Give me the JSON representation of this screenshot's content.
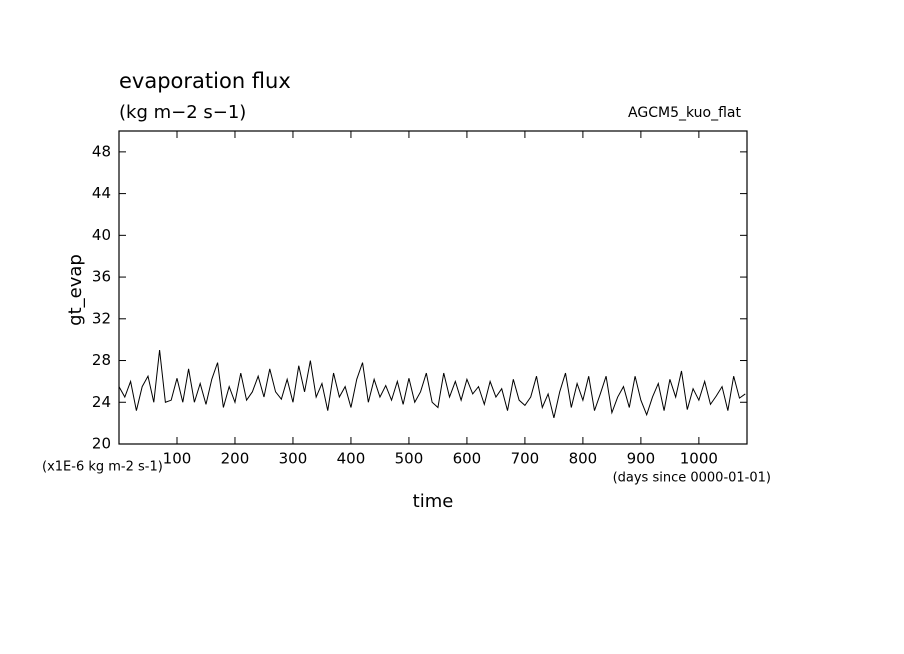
{
  "chart_data": {
    "type": "line",
    "title": "evaporation flux",
    "subtitle": "(kg m−2 s−1)",
    "annotation": "AGCM5_kuo_flat",
    "y_label": "gt_evap",
    "y_unit": "(x1E-6 kg m-2 s-1)",
    "x_label": "time",
    "x_unit": "(days since 0000-01-01)",
    "xlim": [
      0,
      1083
    ],
    "ylim": [
      20,
      50
    ],
    "xticks": [
      100,
      200,
      300,
      400,
      500,
      600,
      700,
      800,
      900,
      1000
    ],
    "yticks": [
      20,
      24,
      28,
      32,
      36,
      40,
      44,
      48
    ],
    "grid": false,
    "x": [
      0,
      10,
      20,
      30,
      40,
      50,
      60,
      70,
      80,
      90,
      100,
      110,
      120,
      130,
      140,
      150,
      160,
      170,
      180,
      190,
      200,
      210,
      220,
      230,
      240,
      250,
      260,
      270,
      280,
      290,
      300,
      310,
      320,
      330,
      340,
      350,
      360,
      370,
      380,
      390,
      400,
      410,
      420,
      430,
      440,
      450,
      460,
      470,
      480,
      490,
      500,
      510,
      520,
      530,
      540,
      550,
      560,
      570,
      580,
      590,
      600,
      610,
      620,
      630,
      640,
      650,
      660,
      670,
      680,
      690,
      700,
      710,
      720,
      730,
      740,
      750,
      760,
      770,
      780,
      790,
      800,
      810,
      820,
      830,
      840,
      850,
      860,
      870,
      880,
      890,
      900,
      910,
      920,
      930,
      940,
      950,
      960,
      970,
      980,
      990,
      1000,
      1010,
      1020,
      1030,
      1040,
      1050,
      1060,
      1070,
      1080
    ],
    "series": [
      {
        "name": "gt_evap",
        "color": "#000000",
        "values": [
          25.5,
          24.5,
          26,
          23.2,
          25.5,
          26.5,
          24,
          29,
          24,
          24.2,
          26.3,
          24,
          27.2,
          24,
          25.8,
          23.8,
          26.2,
          27.8,
          23.5,
          25.5,
          24,
          26.8,
          24.2,
          25,
          26.5,
          24.5,
          27.2,
          25,
          24.3,
          26.2,
          24,
          27.5,
          25,
          28,
          24.5,
          25.8,
          23.2,
          26.8,
          24.5,
          25.5,
          23.5,
          26.2,
          27.8,
          24,
          26.2,
          24.5,
          25.6,
          24.2,
          26,
          23.8,
          26.3,
          24,
          25,
          26.8,
          24,
          23.5,
          26.8,
          24.5,
          26,
          24.2,
          26.2,
          24.8,
          25.5,
          23.8,
          26,
          24.5,
          25.3,
          23.2,
          26.2,
          24.2,
          23.7,
          24.5,
          26.5,
          23.5,
          24.8,
          22.5,
          25,
          26.8,
          23.5,
          25.8,
          24.2,
          26.5,
          23.2,
          24.8,
          26.5,
          23,
          24.5,
          25.5,
          23.5,
          26.5,
          24.2,
          22.8,
          24.5,
          25.8,
          23.2,
          26.2,
          24.5,
          27,
          23.3,
          25.3,
          24.2,
          26,
          23.8,
          24.6,
          25.5,
          23.2,
          26.5,
          24.4,
          24.8
        ]
      }
    ]
  }
}
